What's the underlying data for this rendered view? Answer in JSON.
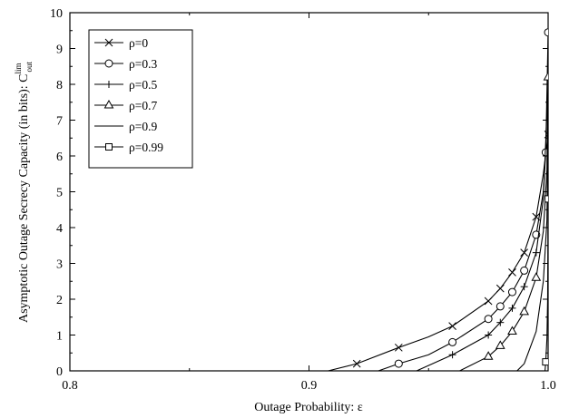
{
  "chart_data": {
    "type": "line",
    "title": "",
    "xlabel": "Outage Probability: ε",
    "ylabel_main": "Asymptotic Outage Secrecy Capacity (in bits): C",
    "ylabel_sup": "lim",
    "ylabel_sub": "out",
    "xlim": [
      0.8,
      1.0
    ],
    "ylim": [
      0,
      10
    ],
    "xticks": [
      0.8,
      0.9,
      1.0
    ],
    "xtick_labels": [
      "0.8",
      "0.9",
      "1.0"
    ],
    "yticks": [
      0,
      1,
      2,
      3,
      4,
      5,
      6,
      7,
      8,
      9,
      10
    ],
    "ytick_labels": [
      "0",
      "1",
      "2",
      "3",
      "4",
      "5",
      "6",
      "7",
      "8",
      "9",
      "10"
    ],
    "grid": false,
    "legend_position": "top-left",
    "series": [
      {
        "name": "ρ=0",
        "marker": "x",
        "x": [
          0.908,
          0.92,
          0.9375,
          0.95,
          0.96,
          0.975,
          0.98,
          0.985,
          0.99,
          0.995,
          0.998,
          1.0
        ],
        "y": [
          0.0,
          0.2,
          0.65,
          0.95,
          1.25,
          1.95,
          2.3,
          2.75,
          3.3,
          4.3,
          5.5,
          6.6
        ],
        "marker_x": [
          0.92,
          0.9375,
          0.96,
          0.975,
          0.98,
          0.985,
          0.99,
          0.995,
          1.0
        ],
        "marker_y": [
          0.2,
          0.65,
          1.25,
          1.95,
          2.3,
          2.75,
          3.3,
          4.3,
          6.6
        ]
      },
      {
        "name": "ρ=0.3",
        "marker": "o",
        "x": [
          0.929,
          0.9375,
          0.95,
          0.96,
          0.975,
          0.98,
          0.985,
          0.99,
          0.995,
          0.998,
          0.999,
          1.0
        ],
        "y": [
          0.0,
          0.2,
          0.45,
          0.8,
          1.45,
          1.8,
          2.2,
          2.8,
          3.8,
          5.0,
          6.1,
          9.45
        ],
        "marker_x": [
          0.9375,
          0.96,
          0.975,
          0.98,
          0.985,
          0.99,
          0.995,
          0.999,
          1.0
        ],
        "marker_y": [
          0.2,
          0.8,
          1.45,
          1.8,
          2.2,
          2.8,
          3.8,
          6.1,
          9.45
        ]
      },
      {
        "name": "ρ=0.5",
        "marker": "+",
        "x": [
          0.945,
          0.96,
          0.975,
          0.98,
          0.985,
          0.99,
          0.995,
          0.998,
          1.0
        ],
        "y": [
          0.0,
          0.45,
          1.0,
          1.35,
          1.75,
          2.35,
          3.3,
          4.8,
          8.0
        ],
        "marker_x": [
          0.96,
          0.975,
          0.98,
          0.985,
          0.99,
          0.995,
          1.0
        ],
        "marker_y": [
          0.45,
          1.0,
          1.35,
          1.75,
          2.35,
          3.3,
          8.0
        ]
      },
      {
        "name": "ρ=0.7",
        "marker": "triangle",
        "x": [
          0.963,
          0.975,
          0.98,
          0.985,
          0.99,
          0.995,
          0.998,
          0.9995,
          1.0
        ],
        "y": [
          0.0,
          0.4,
          0.7,
          1.1,
          1.65,
          2.6,
          3.9,
          5.6,
          8.2
        ],
        "marker_x": [
          0.975,
          0.98,
          0.985,
          0.99,
          0.995,
          1.0
        ],
        "marker_y": [
          0.4,
          0.7,
          1.1,
          1.65,
          2.6,
          8.2
        ]
      },
      {
        "name": "ρ=0.9",
        "marker": "none",
        "x": [
          0.987,
          0.99,
          0.995,
          0.998,
          0.9995,
          1.0
        ],
        "y": [
          0.0,
          0.2,
          1.1,
          2.5,
          4.2,
          7.0
        ],
        "marker_x": [
          0.99,
          0.995
        ],
        "marker_y": [
          0.2,
          1.1
        ]
      },
      {
        "name": "ρ=0.99",
        "marker": "square",
        "x": [
          0.9987,
          0.999,
          0.9995,
          0.9998,
          1.0
        ],
        "y": [
          0.0,
          0.25,
          0.9,
          2.0,
          4.8
        ],
        "marker_x": [
          0.999,
          1.0
        ],
        "marker_y": [
          0.25,
          4.8
        ]
      }
    ]
  }
}
